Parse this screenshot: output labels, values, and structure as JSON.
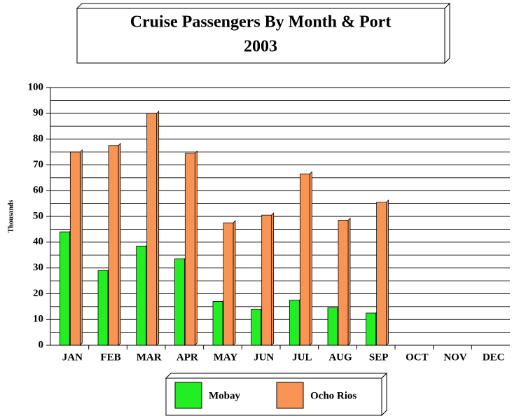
{
  "chart_data": {
    "type": "bar",
    "title": "Cruise Passengers By Month & Port",
    "subtitle": "2003",
    "y_label": "Thousands",
    "categories": [
      "JAN",
      "FEB",
      "MAR",
      "APR",
      "MAY",
      "JUN",
      "JUL",
      "AUG",
      "SEP",
      "OCT",
      "NOV",
      "DEC"
    ],
    "series": [
      {
        "name": "Mobay",
        "color": "#22ee22",
        "values": [
          44,
          29,
          38.5,
          33.5,
          17,
          14,
          17.5,
          14.5,
          12.5,
          null,
          null,
          null
        ]
      },
      {
        "name": "Ocho Rios",
        "color": "#f99455",
        "values": [
          75,
          77.5,
          90,
          74.5,
          47.5,
          50.5,
          66.5,
          48.5,
          55.5,
          null,
          null,
          null
        ]
      }
    ],
    "ylim": [
      0,
      100
    ],
    "yticks": [
      0,
      10,
      20,
      30,
      40,
      50,
      60,
      70,
      80,
      90,
      100
    ],
    "yminorticks": [
      5,
      15,
      25,
      35,
      45,
      55,
      65,
      75,
      85,
      95
    ],
    "grid": true
  }
}
